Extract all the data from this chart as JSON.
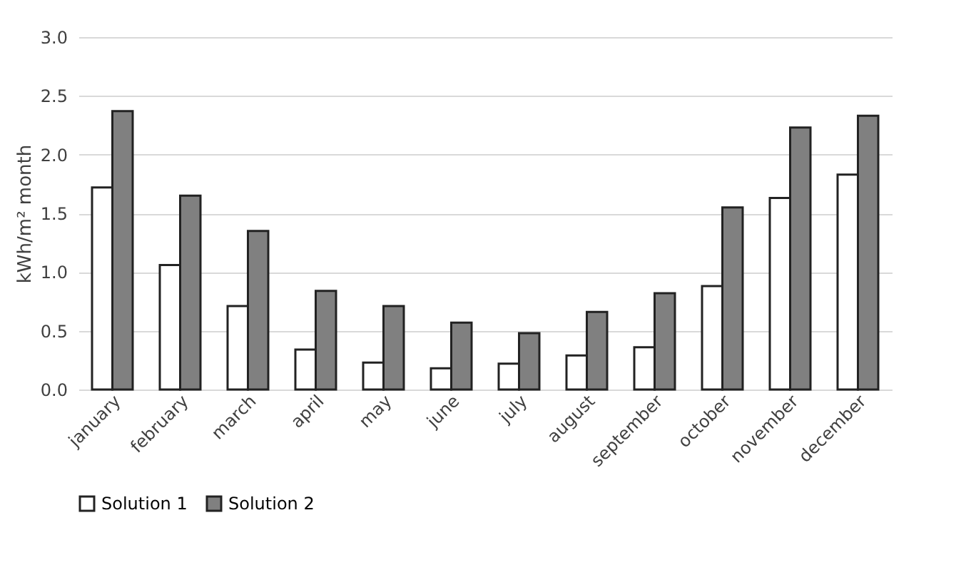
{
  "chart_data": {
    "type": "bar",
    "ylabel": "kWh/m² month",
    "categories": [
      "january",
      "february",
      "march",
      "april",
      "may",
      "june",
      "july",
      "august",
      "september",
      "october",
      "november",
      "december"
    ],
    "series": [
      {
        "name": "Solution 1",
        "color": "#ffffff",
        "values": [
          1.72,
          1.06,
          0.71,
          0.34,
          0.23,
          0.18,
          0.22,
          0.29,
          0.36,
          0.88,
          1.63,
          1.83
        ]
      },
      {
        "name": "Solution 2",
        "color": "#808080",
        "values": [
          2.37,
          1.65,
          1.35,
          0.84,
          0.71,
          0.57,
          0.48,
          0.66,
          0.82,
          1.55,
          2.23,
          2.33
        ]
      }
    ],
    "ylim": [
      0,
      3
    ],
    "yticks": [
      {
        "value": 0,
        "label": "0.0"
      },
      {
        "value": 0.5,
        "label": "0.5"
      },
      {
        "value": 1,
        "label": "1.0"
      },
      {
        "value": 1.5,
        "label": "1.5"
      },
      {
        "value": 2,
        "label": "2.0"
      },
      {
        "value": 2.5,
        "label": "2.5"
      },
      {
        "value": 3,
        "label": "3.0"
      }
    ],
    "grid": "y",
    "legend": "bottom"
  }
}
